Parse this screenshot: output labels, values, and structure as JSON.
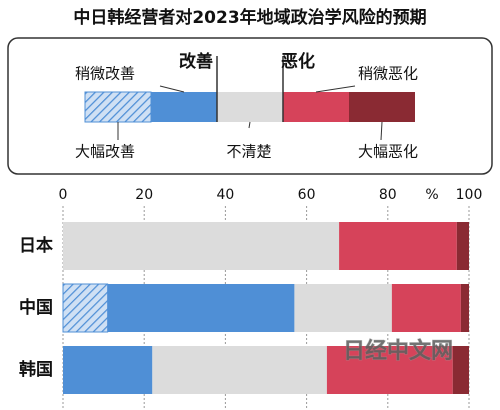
{
  "chart_data": {
    "type": "bar",
    "orientation": "horizontal",
    "stacked": true,
    "title": "中日韩经营者对2023年地域政治学风险的预期",
    "legend_groups": [
      "改善",
      "恶化"
    ],
    "unit": "%",
    "categories": [
      "日本",
      "中国",
      "韩国"
    ],
    "series": [
      {
        "name": "大幅改善",
        "color": "#4f8fd6",
        "pattern": "hatch",
        "values": [
          0,
          11,
          0
        ]
      },
      {
        "name": "稍微改善",
        "color": "#4f8fd6",
        "values": [
          0,
          46,
          22
        ]
      },
      {
        "name": "不清楚",
        "color": "#dcdcdc",
        "values": [
          68,
          24,
          43
        ]
      },
      {
        "name": "稍微恶化",
        "color": "#d6435a",
        "values": [
          29,
          17,
          31
        ]
      },
      {
        "name": "大幅恶化",
        "color": "#8a2a33",
        "values": [
          3,
          2,
          4
        ]
      }
    ],
    "xlim": [
      0,
      100
    ],
    "xticks": [
      0,
      20,
      40,
      60,
      80,
      100
    ],
    "grid": true,
    "watermark": "日经中文网"
  }
}
